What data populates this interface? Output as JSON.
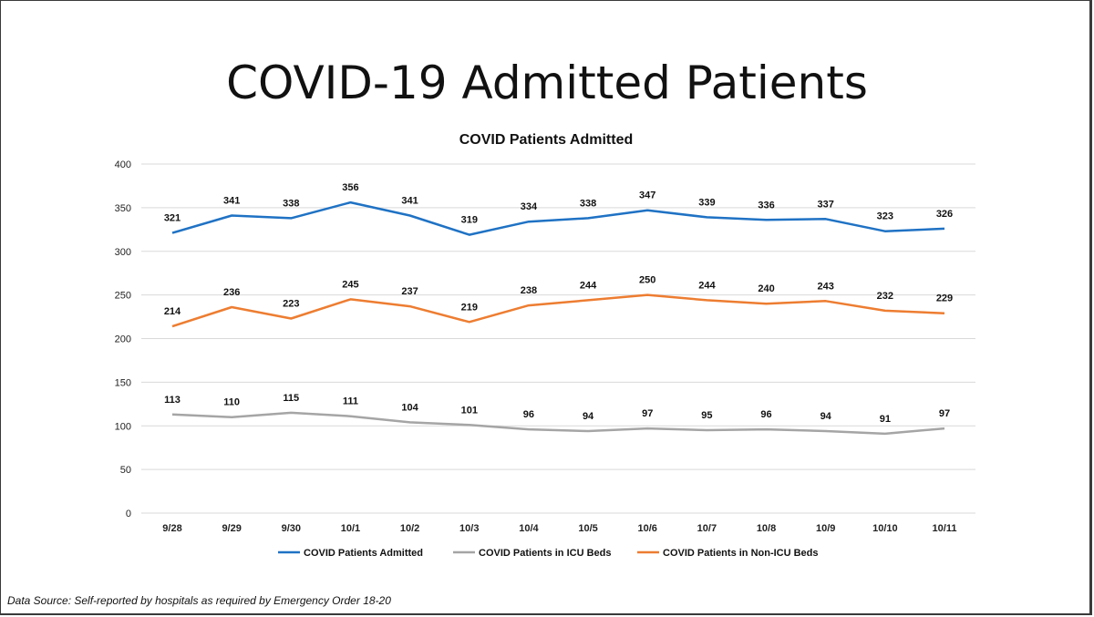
{
  "slide": {
    "title": "COVID-19 Admitted Patients",
    "source": "Data Source: Self-reported by hospitals as required by Emergency Order 18-20"
  },
  "chart_data": {
    "type": "line",
    "title": "COVID Patients Admitted",
    "categories": [
      "9/28",
      "9/29",
      "9/30",
      "10/1",
      "10/2",
      "10/3",
      "10/4",
      "10/5",
      "10/6",
      "10/7",
      "10/8",
      "10/9",
      "10/10",
      "10/11"
    ],
    "ylim": [
      0,
      400
    ],
    "yticks": [
      0,
      50,
      100,
      150,
      200,
      250,
      300,
      350,
      400
    ],
    "grid": true,
    "legend_position": "bottom",
    "series": [
      {
        "name": "COVID Patients Admitted",
        "color": "#1f72c4",
        "values": [
          321,
          341,
          338,
          356,
          341,
          319,
          334,
          338,
          347,
          339,
          336,
          337,
          323,
          326
        ]
      },
      {
        "name": "COVID Patients in ICU Beds",
        "color": "#a5a5a5",
        "values": [
          113,
          110,
          115,
          111,
          104,
          101,
          96,
          94,
          97,
          95,
          96,
          94,
          91,
          97
        ]
      },
      {
        "name": "COVID Patients in Non-ICU Beds",
        "color": "#ed7d31",
        "values": [
          214,
          236,
          223,
          245,
          237,
          219,
          238,
          244,
          250,
          244,
          240,
          243,
          232,
          229
        ]
      }
    ]
  }
}
